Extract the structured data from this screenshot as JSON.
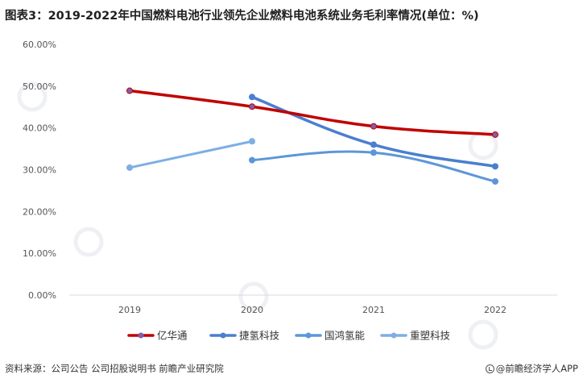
{
  "title": "图表3：2019-2022年中国燃料电池行业领先企业燃料电池系统业务毛利率情况(单位：%)",
  "source": "资料来源：公司公告 公司招股说明书 前瞻产业研究院",
  "brand": "@前瞻经济学人APP",
  "chart_data": {
    "type": "line",
    "title": "图表3：2019-2022年中国燃料电池行业领先企业燃料电池系统业务毛利率情况(单位：%)",
    "x": [
      "2019",
      "2020",
      "2021",
      "2022"
    ],
    "ylim": [
      0,
      60
    ],
    "yticks": [
      "0.00%",
      "10.00%",
      "20.00%",
      "30.00%",
      "40.00%",
      "50.00%",
      "60.00%"
    ],
    "grid": false,
    "legend_position": "bottom",
    "series": [
      {
        "name": "亿华通",
        "color": "#c00000",
        "marker": "#7f5fa8",
        "width": 3.5,
        "values": [
          48.9,
          45.1,
          40.4,
          38.4
        ]
      },
      {
        "name": "捷氢科技",
        "color": "#4a7fcf",
        "marker": "#4a7fcf",
        "width": 3.5,
        "values": [
          null,
          47.4,
          36.0,
          30.8
        ]
      },
      {
        "name": "国鸿氢能",
        "color": "#5d96d8",
        "marker": "#5d96d8",
        "width": 3,
        "values": [
          null,
          32.3,
          34.1,
          27.2
        ]
      },
      {
        "name": "重塑科技",
        "color": "#7eaee4",
        "marker": "#7eaee4",
        "width": 3,
        "values": [
          30.5,
          36.8,
          null,
          null
        ]
      }
    ]
  }
}
